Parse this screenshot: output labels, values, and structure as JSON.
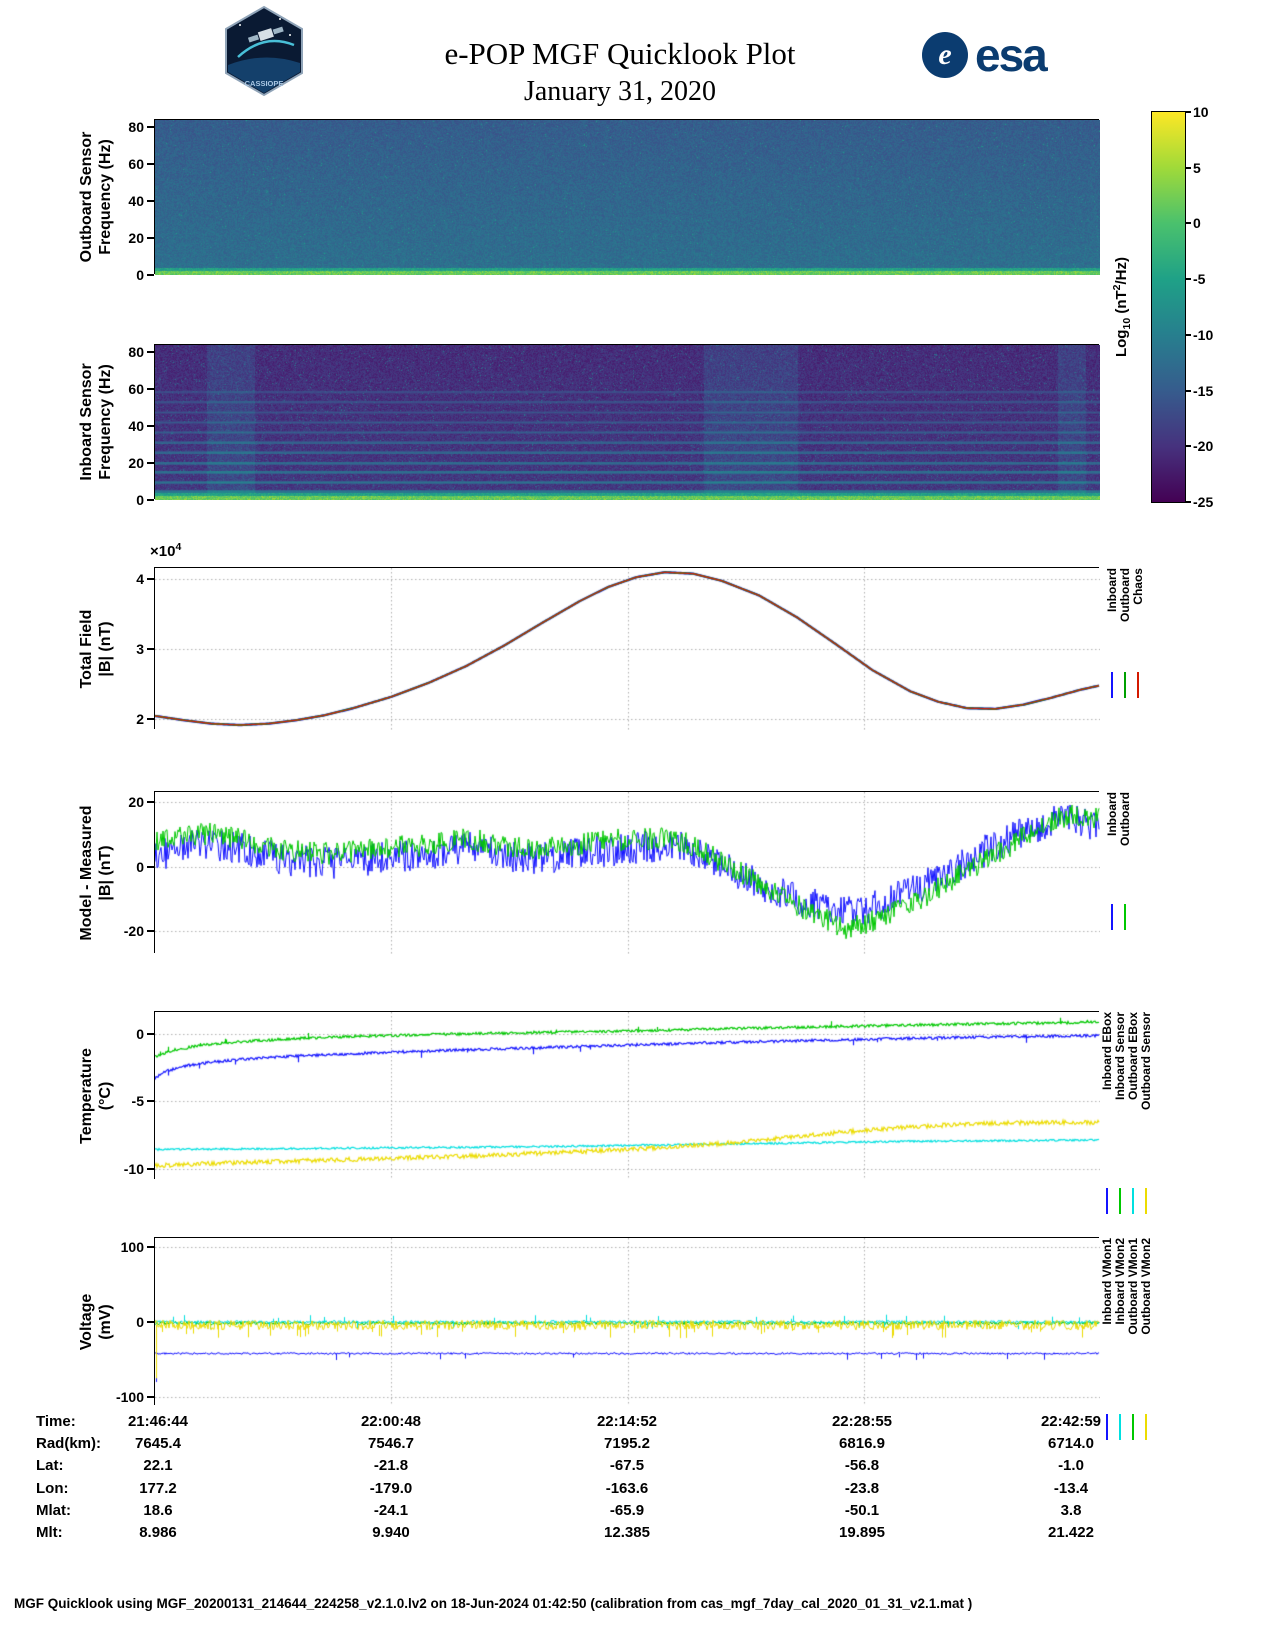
{
  "header": {
    "title": "e-POP MGF Quicklook Plot",
    "date": "January 31, 2020",
    "cassiope_text": "CASSIOPE",
    "esa_emblem": "e",
    "esa_text": "esa"
  },
  "colorbar": {
    "label_prefix": "Log",
    "label_sub": "10",
    "label_mid": " (nT",
    "label_sup": "2",
    "label_suffix": "/Hz)",
    "ticks": [
      10,
      5,
      0,
      -5,
      -10,
      -15,
      -20,
      -25
    ],
    "vmin": -25,
    "vmax": 10,
    "gradient": [
      "#440154",
      "#46327e",
      "#365c8d",
      "#277f8e",
      "#1fa187",
      "#4ac16d",
      "#a0da39",
      "#fde725"
    ]
  },
  "panels": {
    "outboard_spectrogram": {
      "ylabel_line1": "Outboard Sensor",
      "ylabel_line2": "Frequency (Hz)"
    },
    "inboard_spectrogram": {
      "ylabel_line1": "Inboard Sensor",
      "ylabel_line2": "Frequency (Hz)"
    },
    "total_field": {
      "ylabel_line1": "Total Field",
      "ylabel_line2": "|B| (nT)",
      "exp_prefix": "×10",
      "exp_sup": "4",
      "legend": [
        {
          "label": "Inboard",
          "color": "#1414ff"
        },
        {
          "label": "Outboard",
          "color": "#00a000"
        },
        {
          "label": "Chaos",
          "color": "#d41900"
        }
      ]
    },
    "model_measured": {
      "ylabel_line1": "Model - Measured",
      "ylabel_line2": "|B| (nT)",
      "legend": [
        {
          "label": "Inboard",
          "color": "#1414ff"
        },
        {
          "label": "Outboard",
          "color": "#00c800"
        }
      ]
    },
    "temperature": {
      "ylabel_line1": "Temperature",
      "ylabel_line2": "(°C)",
      "legend": [
        {
          "label": "Inboard EBox",
          "color": "#1414ff"
        },
        {
          "label": "Inboard Sensor",
          "color": "#00c800"
        },
        {
          "label": "Outboard EBox",
          "color": "#00e0e0"
        },
        {
          "label": "Outboard Sensor",
          "color": "#ecdc00"
        }
      ]
    },
    "voltage": {
      "ylabel_line1": "Voltage",
      "ylabel_line2": "(mV)",
      "legend": [
        {
          "label": "Inboard VMon1",
          "color": "#1414ff"
        },
        {
          "label": "Inboard VMon2",
          "color": "#00e0e0"
        },
        {
          "label": "Outboard VMon1",
          "color": "#00c800"
        },
        {
          "label": "Outboard VMon2",
          "color": "#ecdc00"
        }
      ]
    }
  },
  "info_table": {
    "rows": [
      {
        "label": "Time:",
        "values": [
          "21:46:44",
          "22:00:48",
          "22:14:52",
          "22:28:55",
          "22:42:59"
        ]
      },
      {
        "label": "Rad(km):",
        "values": [
          "7645.4",
          "7546.7",
          "7195.2",
          "6816.9",
          "6714.0"
        ]
      },
      {
        "label": "Lat:",
        "values": [
          "22.1",
          "-21.8",
          "-67.5",
          "-56.8",
          "-1.0"
        ]
      },
      {
        "label": "Lon:",
        "values": [
          "177.2",
          "-179.0",
          "-163.6",
          "-23.8",
          "-13.4"
        ]
      },
      {
        "label": "Mlat:",
        "values": [
          "18.6",
          "-24.1",
          "-65.9",
          "-50.1",
          "3.8"
        ]
      },
      {
        "label": "Mlt:",
        "values": [
          "8.986",
          "9.940",
          "12.385",
          "19.895",
          "21.422"
        ]
      }
    ]
  },
  "footer": "MGF Quicklook using MGF_20200131_214644_224258_v2.1.0.lv2 on 18-Jun-2024 01:42:50 (calibration from cas_mgf_7day_cal_2020_01_31_v2.1.mat )",
  "chart_data": [
    {
      "id": "outboard_spectrogram",
      "type": "heatmap",
      "title": "Outboard Sensor Spectrogram",
      "ylabel": "Frequency (Hz)",
      "ylim": [
        0,
        84
      ],
      "yticks": [
        0,
        20,
        40,
        60,
        80
      ],
      "x_time_ticks": [
        "21:46:44",
        "22:00:48",
        "22:14:52",
        "22:28:55",
        "22:42:59"
      ],
      "value_label": "Log10 (nT2/Hz)",
      "value_range": [
        -25,
        10
      ],
      "background_level": -10.5,
      "background_noise": 2.2,
      "vertical_fade_top": -3,
      "bottom_band": {
        "freq_max": 2.4,
        "level": 5,
        "noise": 2.4
      },
      "speckle_probability": 0.006,
      "speckle_level": -5
    },
    {
      "id": "inboard_spectrogram",
      "type": "heatmap",
      "title": "Inboard Sensor Spectrogram",
      "ylabel": "Frequency (Hz)",
      "ylim": [
        0,
        84
      ],
      "yticks": [
        0,
        20,
        40,
        60,
        80
      ],
      "x_time_ticks": [
        "21:46:44",
        "22:00:48",
        "22:14:52",
        "22:28:55",
        "22:42:59"
      ],
      "value_label": "Log10 (nT2/Hz)",
      "value_range": [
        -25,
        10
      ],
      "background_level": -18.5,
      "background_noise": 2.4,
      "vertical_fade_top": -1.5,
      "bottom_band": {
        "freq_max": 2.4,
        "level": 5,
        "noise": 2.4
      },
      "interference_lines_hz": [
        4.5,
        9.5,
        15,
        20,
        25.5,
        31,
        36.5,
        42,
        47.5,
        53,
        58.5
      ],
      "interference_level": -9,
      "interference_fade_per_hz": 0.12,
      "disturbance_columns": [
        [
          0.055,
          0.105
        ],
        [
          0.58,
          0.68
        ],
        [
          0.955,
          0.985
        ]
      ],
      "speckle_probability": 0.02,
      "speckle_level": -11
    },
    {
      "id": "total_field",
      "type": "line",
      "ylabel": "Total Field |B| (nT)",
      "y_unit": "x 10^4 nT",
      "ylim": [
        1.85,
        4.15
      ],
      "yticks": [
        2,
        3,
        4
      ],
      "grid_x": [
        0.25,
        0.5,
        0.75
      ],
      "points": [
        [
          0,
          2.05
        ],
        [
          0.03,
          1.99
        ],
        [
          0.06,
          1.94
        ],
        [
          0.09,
          1.92
        ],
        [
          0.12,
          1.94
        ],
        [
          0.15,
          1.99
        ],
        [
          0.18,
          2.06
        ],
        [
          0.21,
          2.16
        ],
        [
          0.25,
          2.32
        ],
        [
          0.29,
          2.52
        ],
        [
          0.33,
          2.76
        ],
        [
          0.37,
          3.05
        ],
        [
          0.41,
          3.37
        ],
        [
          0.45,
          3.68
        ],
        [
          0.48,
          3.88
        ],
        [
          0.51,
          4.02
        ],
        [
          0.54,
          4.09
        ],
        [
          0.57,
          4.07
        ],
        [
          0.6,
          3.97
        ],
        [
          0.64,
          3.76
        ],
        [
          0.68,
          3.45
        ],
        [
          0.72,
          3.08
        ],
        [
          0.76,
          2.7
        ],
        [
          0.8,
          2.4
        ],
        [
          0.83,
          2.25
        ],
        [
          0.86,
          2.16
        ],
        [
          0.89,
          2.15
        ],
        [
          0.92,
          2.21
        ],
        [
          0.95,
          2.31
        ],
        [
          0.98,
          2.42
        ],
        [
          1,
          2.48
        ]
      ],
      "series": [
        {
          "name": "Inboard",
          "color": "#1414ff",
          "width": 2.4
        },
        {
          "name": "Outboard",
          "color": "#00a000",
          "width": 1.8
        },
        {
          "name": "Chaos",
          "color": "#d41900",
          "width": 1.2
        }
      ]
    },
    {
      "id": "model_measured",
      "type": "line",
      "ylabel": "Model - Measured |B| (nT)",
      "ylim": [
        -27,
        23
      ],
      "yticks": [
        -20,
        0,
        20
      ],
      "grid_x": [
        0.25,
        0.5,
        0.75
      ],
      "series": [
        {
          "name": "Inboard",
          "color": "#1414ff",
          "width": 1,
          "noise": 5,
          "points": [
            [
              0,
              3
            ],
            [
              0.03,
              6
            ],
            [
              0.06,
              7
            ],
            [
              0.1,
              5
            ],
            [
              0.14,
              2
            ],
            [
              0.18,
              1
            ],
            [
              0.22,
              2
            ],
            [
              0.26,
              3
            ],
            [
              0.3,
              4
            ],
            [
              0.33,
              6
            ],
            [
              0.36,
              4
            ],
            [
              0.4,
              2.5
            ],
            [
              0.44,
              3.5
            ],
            [
              0.48,
              5
            ],
            [
              0.52,
              6
            ],
            [
              0.55,
              6.5
            ],
            [
              0.58,
              3
            ],
            [
              0.62,
              -3
            ],
            [
              0.66,
              -8
            ],
            [
              0.7,
              -12
            ],
            [
              0.73,
              -14
            ],
            [
              0.76,
              -12.5
            ],
            [
              0.8,
              -8
            ],
            [
              0.84,
              -2
            ],
            [
              0.88,
              5
            ],
            [
              0.92,
              11
            ],
            [
              0.95,
              14
            ],
            [
              0.97,
              15
            ],
            [
              1,
              12
            ]
          ]
        },
        {
          "name": "Outboard",
          "color": "#00c800",
          "width": 1,
          "noise": 3.5,
          "points": [
            [
              0,
              7
            ],
            [
              0.03,
              9.5
            ],
            [
              0.06,
              10
            ],
            [
              0.1,
              8
            ],
            [
              0.14,
              5
            ],
            [
              0.18,
              4
            ],
            [
              0.22,
              5
            ],
            [
              0.26,
              6
            ],
            [
              0.3,
              7
            ],
            [
              0.33,
              8.5
            ],
            [
              0.36,
              7
            ],
            [
              0.4,
              5.5
            ],
            [
              0.44,
              6.5
            ],
            [
              0.48,
              8
            ],
            [
              0.52,
              8.5
            ],
            [
              0.55,
              8.5
            ],
            [
              0.58,
              5
            ],
            [
              0.62,
              -2
            ],
            [
              0.66,
              -9
            ],
            [
              0.7,
              -15
            ],
            [
              0.73,
              -19
            ],
            [
              0.76,
              -17
            ],
            [
              0.8,
              -12
            ],
            [
              0.84,
              -5
            ],
            [
              0.88,
              2
            ],
            [
              0.92,
              9
            ],
            [
              0.95,
              14
            ],
            [
              0.97,
              16
            ],
            [
              1,
              15
            ]
          ]
        }
      ]
    },
    {
      "id": "temperature",
      "type": "line",
      "ylabel": "Temperature (°C)",
      "ylim": [
        -10.8,
        1.6
      ],
      "yticks": [
        0,
        -5,
        -10
      ],
      "grid_x": [
        0.25,
        0.5,
        0.75
      ],
      "series": [
        {
          "name": "Inboard EBox",
          "color": "#1414ff",
          "width": 1.2,
          "noise": 0.1,
          "spike_prob": 0.012,
          "spike_amp": -0.5,
          "points": [
            [
              0,
              -3.3
            ],
            [
              0.01,
              -2.8
            ],
            [
              0.03,
              -2.4
            ],
            [
              0.06,
              -2.1
            ],
            [
              0.1,
              -1.85
            ],
            [
              0.15,
              -1.65
            ],
            [
              0.2,
              -1.5
            ],
            [
              0.3,
              -1.25
            ],
            [
              0.4,
              -1.05
            ],
            [
              0.5,
              -0.85
            ],
            [
              0.6,
              -0.65
            ],
            [
              0.7,
              -0.5
            ],
            [
              0.8,
              -0.35
            ],
            [
              0.9,
              -0.22
            ],
            [
              1,
              -0.15
            ]
          ]
        },
        {
          "name": "Inboard Sensor",
          "color": "#00c800",
          "width": 1.2,
          "noise": 0.1,
          "spike_prob": 0.012,
          "spike_amp": 0.4,
          "points": [
            [
              0,
              -1.7
            ],
            [
              0.02,
              -1.2
            ],
            [
              0.05,
              -0.85
            ],
            [
              0.1,
              -0.55
            ],
            [
              0.15,
              -0.35
            ],
            [
              0.2,
              -0.22
            ],
            [
              0.3,
              -0.05
            ],
            [
              0.4,
              0.08
            ],
            [
              0.5,
              0.2
            ],
            [
              0.6,
              0.35
            ],
            [
              0.7,
              0.5
            ],
            [
              0.8,
              0.63
            ],
            [
              0.9,
              0.75
            ],
            [
              1,
              0.85
            ]
          ]
        },
        {
          "name": "Outboard EBox",
          "color": "#00e0e0",
          "width": 1.2,
          "noise": 0.07,
          "points": [
            [
              0,
              -8.55
            ],
            [
              0.1,
              -8.5
            ],
            [
              0.2,
              -8.45
            ],
            [
              0.3,
              -8.4
            ],
            [
              0.4,
              -8.35
            ],
            [
              0.5,
              -8.25
            ],
            [
              0.6,
              -8.15
            ],
            [
              0.7,
              -8.05
            ],
            [
              0.8,
              -7.95
            ],
            [
              0.9,
              -7.9
            ],
            [
              1,
              -7.85
            ]
          ]
        },
        {
          "name": "Outboard Sensor",
          "color": "#ecdc00",
          "width": 1.2,
          "noise": 0.16,
          "points": [
            [
              0,
              -9.75
            ],
            [
              0.05,
              -9.6
            ],
            [
              0.1,
              -9.5
            ],
            [
              0.15,
              -9.4
            ],
            [
              0.2,
              -9.3
            ],
            [
              0.25,
              -9.2
            ],
            [
              0.3,
              -9.1
            ],
            [
              0.35,
              -9.0
            ],
            [
              0.4,
              -8.85
            ],
            [
              0.45,
              -8.7
            ],
            [
              0.5,
              -8.55
            ],
            [
              0.55,
              -8.35
            ],
            [
              0.6,
              -8.1
            ],
            [
              0.65,
              -7.8
            ],
            [
              0.7,
              -7.45
            ],
            [
              0.75,
              -7.15
            ],
            [
              0.8,
              -6.9
            ],
            [
              0.85,
              -6.7
            ],
            [
              0.9,
              -6.6
            ],
            [
              0.95,
              -6.55
            ],
            [
              1,
              -6.55
            ]
          ]
        }
      ]
    },
    {
      "id": "voltage",
      "type": "line",
      "ylabel": "Voltage (mV)",
      "ylim": [
        -112,
        112
      ],
      "yticks": [
        -100,
        0,
        100
      ],
      "grid_x": [
        0.25,
        0.5,
        0.75
      ],
      "series": [
        {
          "name": "Inboard VMon1",
          "color": "#1414ff",
          "width": 1,
          "noise": 1.3,
          "spike_prob": 0.012,
          "spike_amp": -9,
          "start_spike": -80,
          "points": [
            [
              0,
              -42
            ],
            [
              1,
              -42
            ]
          ]
        },
        {
          "name": "Outboard VMon1",
          "color": "#00c800",
          "width": 1,
          "noise": 2.2,
          "points": [
            [
              0,
              -1.5
            ],
            [
              1,
              -1.5
            ]
          ]
        },
        {
          "name": "Inboard VMon2",
          "color": "#00e0e0",
          "width": 1,
          "noise": 2,
          "spike_prob": 0.05,
          "spike_amp": 10,
          "spike_both": true,
          "points": [
            [
              0,
              0
            ],
            [
              1,
              0
            ]
          ]
        },
        {
          "name": "Outboard VMon2",
          "color": "#ecdc00",
          "width": 1,
          "noise": 6.5,
          "spike_prob": 0.04,
          "spike_amp": -18,
          "start_spike": -75,
          "points": [
            [
              0,
              -4
            ],
            [
              1,
              -4
            ]
          ]
        }
      ]
    }
  ]
}
